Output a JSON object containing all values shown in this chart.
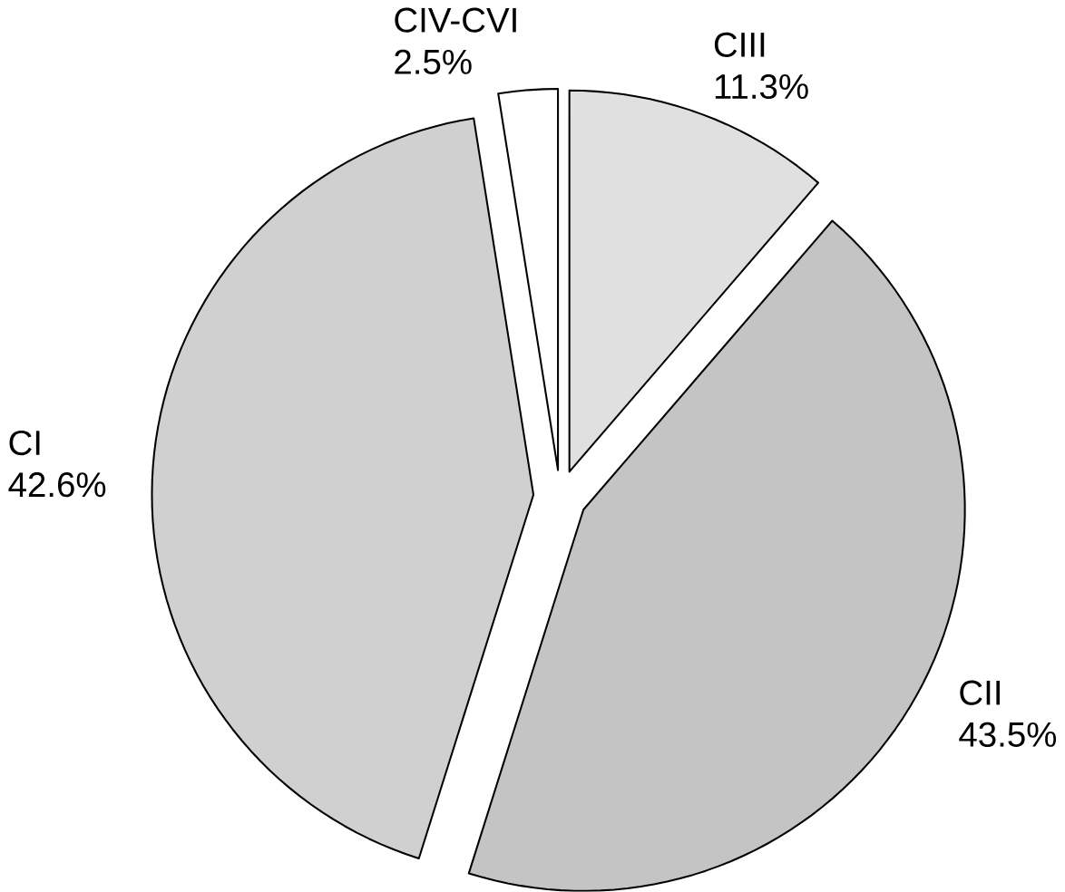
{
  "chart_data": {
    "type": "pie",
    "categories": [
      "CIII",
      "CII",
      "CI",
      "CIV-CVI"
    ],
    "values": [
      11.3,
      43.5,
      42.6,
      2.5
    ],
    "value_labels": [
      "11.3%",
      "43.5%",
      "42.6%",
      "2.5%"
    ],
    "colors": [
      "#e0e0e0",
      "#c4c4c4",
      "#d0d0d0",
      "#ffffff"
    ]
  }
}
